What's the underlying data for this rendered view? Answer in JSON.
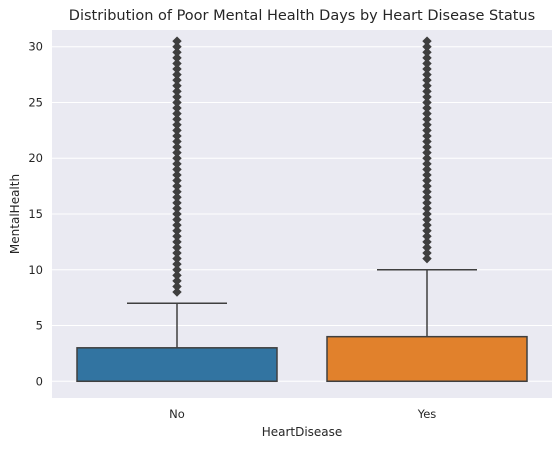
{
  "chart_data": {
    "type": "box",
    "title": "Distribution of Poor Mental Health Days by Heart Disease Status",
    "xlabel": "HeartDisease",
    "ylabel": "MentalHealth",
    "categories": [
      "No",
      "Yes"
    ],
    "ylim": [
      -1.5,
      31.5
    ],
    "yticks": [
      0,
      5,
      10,
      15,
      20,
      25,
      30
    ],
    "grid": true,
    "background": "#eaeaf2",
    "series": [
      {
        "category": "No",
        "color": "#3274a1",
        "min": 0,
        "q1": 0,
        "median": 0,
        "q3": 3,
        "max": 7,
        "outliers": [
          8,
          9,
          10,
          11,
          12,
          13,
          14,
          15,
          16,
          17,
          18,
          19,
          20,
          21,
          22,
          23,
          24,
          25,
          26,
          27,
          28,
          29,
          30
        ]
      },
      {
        "category": "Yes",
        "color": "#e1812c",
        "min": 0,
        "q1": 0,
        "median": 0,
        "q3": 4,
        "max": 10,
        "outliers": [
          11,
          12,
          13,
          14,
          15,
          16,
          17,
          18,
          19,
          20,
          21,
          22,
          23,
          24,
          25,
          26,
          27,
          28,
          29,
          30
        ]
      }
    ]
  }
}
